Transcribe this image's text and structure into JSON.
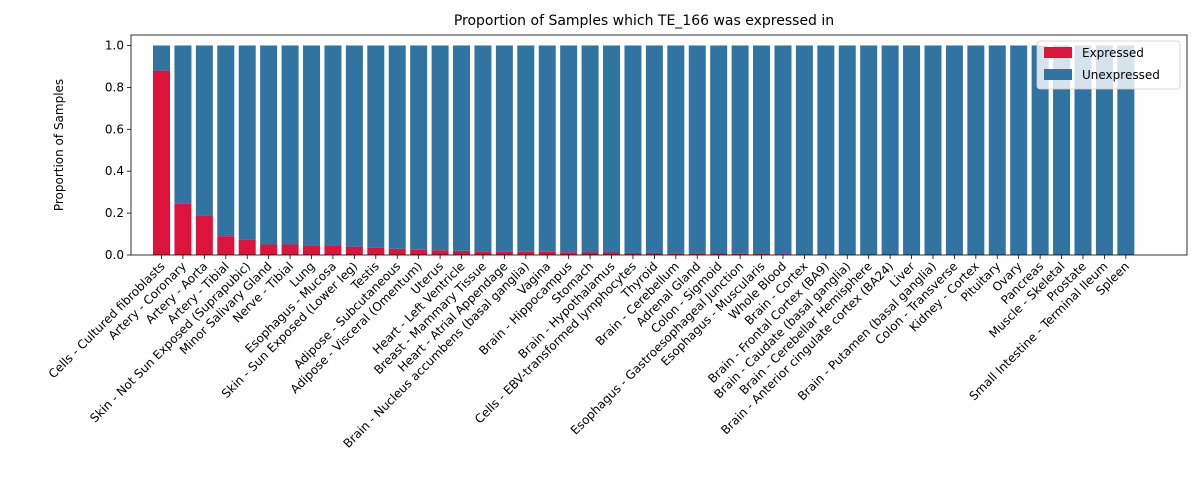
{
  "chart_data": {
    "type": "bar",
    "stacked": true,
    "title": "Proportion of Samples which TE_166 was expressed in",
    "xlabel": "",
    "ylabel": "Proportion of Samples",
    "ylim": [
      0,
      1.05
    ],
    "yticks": [
      "0.0",
      "0.2",
      "0.4",
      "0.6",
      "0.8",
      "1.0"
    ],
    "grid": false,
    "legend_position": "top-right",
    "colors": {
      "Expressed": "#dc143c",
      "Unexpressed": "#3274a1"
    },
    "categories": [
      "Cells - Cultured fibroblasts",
      "Artery - Coronary",
      "Artery - Aorta",
      "Artery - Tibial",
      "Skin - Not Sun Exposed (Suprapubic)",
      "Minor Salivary Gland",
      "Nerve - Tibial",
      "Lung",
      "Esophagus - Mucosa",
      "Skin - Sun Exposed (Lower leg)",
      "Testis",
      "Adipose - Subcutaneous",
      "Adipose - Visceral (Omentum)",
      "Uterus",
      "Heart - Left Ventricle",
      "Breast - Mammary Tissue",
      "Heart - Atrial Appendage",
      "Brain - Nucleus accumbens (basal ganglia)",
      "Vagina",
      "Brain - Hippocampus",
      "Stomach",
      "Brain - Hypothalamus",
      "Cells - EBV-transformed lymphocytes",
      "Thyroid",
      "Brain - Cerebellum",
      "Adrenal Gland",
      "Colon - Sigmoid",
      "Esophagus - Gastroesophageal Junction",
      "Esophagus - Muscularis",
      "Whole Blood",
      "Brain - Cortex",
      "Brain - Frontal Cortex (BA9)",
      "Brain - Caudate (basal ganglia)",
      "Brain - Cerebellar Hemisphere",
      "Brain - Anterior cingulate cortex (BA24)",
      "Liver",
      "Brain - Putamen (basal ganglia)",
      "Colon - Transverse",
      "Kidney - Cortex",
      "Pituitary",
      "Ovary",
      "Pancreas",
      "Muscle - Skeletal",
      "Prostate",
      "Small Intestine - Terminal Ileum",
      "Spleen"
    ],
    "series": [
      {
        "name": "Expressed",
        "values": [
          0.88,
          0.245,
          0.19,
          0.09,
          0.075,
          0.05,
          0.05,
          0.045,
          0.045,
          0.04,
          0.035,
          0.03,
          0.025,
          0.022,
          0.02,
          0.018,
          0.016,
          0.015,
          0.015,
          0.013,
          0.012,
          0.012,
          0.01,
          0.01,
          0.008,
          0.008,
          0.007,
          0.006,
          0.005,
          0.004,
          0,
          0,
          0,
          0,
          0,
          0,
          0,
          0,
          0,
          0,
          0,
          0,
          0,
          0,
          0,
          0
        ]
      },
      {
        "name": "Unexpressed",
        "values": [
          0.12,
          0.755,
          0.81,
          0.91,
          0.925,
          0.95,
          0.95,
          0.955,
          0.955,
          0.96,
          0.965,
          0.97,
          0.975,
          0.978,
          0.98,
          0.982,
          0.984,
          0.985,
          0.985,
          0.987,
          0.988,
          0.988,
          0.99,
          0.99,
          0.992,
          0.992,
          0.993,
          0.994,
          0.995,
          0.996,
          1,
          1,
          1,
          1,
          1,
          1,
          1,
          1,
          1,
          1,
          1,
          1,
          1,
          1,
          1,
          1
        ]
      }
    ]
  }
}
